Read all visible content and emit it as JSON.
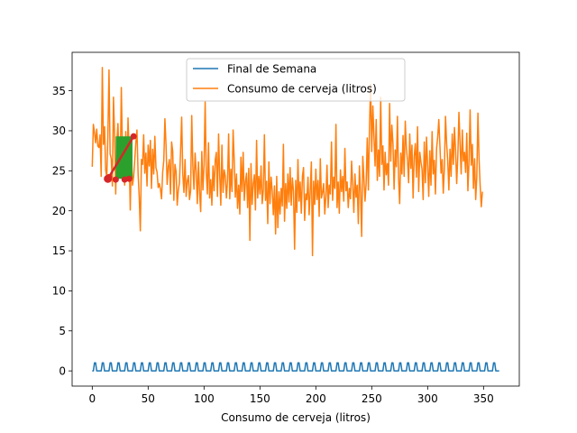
{
  "chart_data": {
    "type": "line",
    "title": "",
    "xlabel": "Consumo de cerveja (litros)",
    "ylabel": "",
    "xlim": [
      -18,
      382
    ],
    "ylim": [
      -1.9,
      39.8
    ],
    "xticks": [
      0,
      50,
      100,
      150,
      200,
      250,
      300,
      350
    ],
    "yticks": [
      0,
      5,
      10,
      15,
      20,
      25,
      30,
      35
    ],
    "grid": false,
    "legend_position": "top-center",
    "series": [
      {
        "name": "Final de Semana",
        "color": "#1f77b4",
        "kind": "weekly_pulse",
        "x_start": 0,
        "x_end": 364,
        "weekend_first_day": 2,
        "high": 1,
        "low": 0
      },
      {
        "name": "Consumo de cerveja (litros)",
        "color": "#ff7f0e",
        "x_start": 0,
        "x_step": 1,
        "values": [
          25.5,
          30.8,
          29.8,
          28.5,
          30.2,
          28.1,
          27.9,
          29.5,
          24.3,
          37.9,
          28.3,
          30.5,
          25.1,
          24.2,
          29.5,
          37.6,
          27.1,
          26.5,
          23.1,
          34.2,
          29.4,
          22.1,
          28.7,
          30.9,
          26.2,
          24.6,
          35.4,
          27.8,
          26.1,
          23.2,
          29.9,
          23.8,
          31.6,
          27.3,
          20.1,
          27.7,
          23.2,
          24.2,
          26.3,
          28.5,
          30.1,
          24.7,
          21.8,
          17.5,
          26.4,
          25.8,
          29.5,
          24.7,
          27.2,
          23.1,
          28.2,
          25.6,
          28.8,
          22.8,
          27.7,
          24.6,
          29.3,
          25.4,
          24.8,
          22.9,
          23.4,
          22.7,
          21.5,
          24.8,
          26.3,
          31.5,
          28.2,
          23.3,
          25.5,
          26.4,
          22.1,
          28.6,
          27.4,
          21.3,
          25.8,
          24.9,
          20.7,
          22.6,
          23.5,
          27.4,
          31.7,
          24.6,
          22.3,
          26.4,
          21.8,
          23.7,
          24.4,
          21.4,
          22.5,
          31.9,
          25.6,
          22.7,
          27.2,
          24.9,
          20.9,
          26.1,
          22.3,
          19.9,
          27.4,
          22.6,
          25.7,
          33.6,
          24.8,
          22.1,
          28.5,
          21.6,
          23.9,
          20.7,
          25.6,
          22.5,
          26.3,
          27.3,
          21.8,
          29.6,
          24.5,
          20.7,
          28.2,
          22.3,
          25.1,
          24.3,
          21.6,
          23.8,
          29.6,
          21.5,
          25.2,
          22.4,
          30.1,
          26.3,
          21.7,
          24.6,
          20.3,
          23.2,
          19.6,
          26.7,
          22.4,
          27.3,
          21.3,
          23.6,
          24.7,
          20.4,
          25.3,
          16.3,
          25.9,
          20.8,
          23.4,
          24.5,
          20.1,
          28.8,
          21.6,
          24.3,
          22.1,
          25.6,
          20.9,
          22.6,
          29.5,
          21.3,
          23.7,
          18.4,
          26.1,
          20.9,
          24.2,
          22.5,
          19.5,
          23.1,
          17.1,
          24.3,
          17.9,
          22.4,
          19.6,
          22.8,
          20.6,
          28.3,
          18.7,
          23.4,
          20.3,
          24.6,
          21.1,
          25.4,
          20.7,
          24.1,
          22.5,
          15.2,
          23.8,
          19.8,
          26.4,
          21.2,
          23.6,
          19.7,
          24.3,
          25.4,
          18.8,
          22.1,
          21.4,
          24.2,
          19.5,
          22.5,
          26.1,
          14.4,
          23.7,
          20.8,
          25.2,
          21.4,
          23.8,
          19.3,
          26.5,
          21.6,
          22.3,
          23.4,
          19.6,
          21.8,
          25.7,
          20.4,
          23.2,
          22.1,
          28.6,
          21.3,
          24.2,
          22.8,
          30.8,
          20.4,
          23.6,
          19.7,
          25.1,
          22.4,
          24.3,
          21.2,
          27.8,
          22.5,
          23.6,
          20.4,
          22.8,
          21.5,
          26.2,
          23.3,
          19.8,
          24.6,
          21.7,
          23.2,
          18.4,
          25.6,
          22.3,
          16.8,
          26.8,
          24.1,
          21.2,
          23.4,
          29.1,
          22.6,
          30.5,
          35.8,
          27.4,
          33.1,
          29.3,
          25.6,
          31.4,
          23.8,
          27.6,
          24.3,
          34.2,
          25.8,
          28.1,
          22.6,
          27.3,
          24.5,
          25.9,
          23.2,
          33.4,
          26.2,
          30.7,
          28.4,
          22.7,
          27.6,
          25.5,
          31.8,
          24.1,
          20.9,
          27.2,
          24.6,
          29.4,
          24.3,
          31.2,
          27.8,
          26.3,
          23.5,
          29.6,
          25.3,
          28.2,
          21.6,
          26.8,
          28.4,
          24.2,
          30.5,
          22.4,
          27.3,
          26.1,
          25.2,
          21.4,
          28.6,
          23.5,
          29.2,
          25.6,
          21.8,
          27.5,
          23.2,
          29.9,
          24.6,
          26.3,
          22.1,
          27.8,
          29.2,
          31.4,
          28.1,
          24.7,
          26.4,
          22.2,
          25.4,
          31.8,
          28.4,
          26.2,
          22.6,
          27.7,
          24.3,
          29.6,
          25.8,
          30.4,
          27.5,
          23.4,
          26.8,
          32.3,
          28.4,
          24.6,
          30.1,
          26.2,
          27.3,
          24.8,
          29.7,
          22.5,
          26.1,
          32.6,
          25.7,
          28.3,
          22.8,
          26.5,
          21.4,
          24.3,
          32.2,
          26.5,
          23.1,
          20.5,
          22.4
        ]
      }
    ],
    "annotations": [
      {
        "kind": "rect",
        "color": "#2ca02c",
        "x": [
          21,
          36
        ],
        "y": [
          24.0,
          29.3
        ]
      },
      {
        "kind": "segment",
        "color": "#d62728",
        "points": [
          [
            14,
            24.0
          ],
          [
            37,
            29.3
          ]
        ],
        "markers": true,
        "extra_markers": [
          [
            15,
            24.2
          ],
          [
            21,
            23.9
          ],
          [
            29,
            23.9
          ],
          [
            33,
            24.0
          ]
        ]
      }
    ]
  }
}
